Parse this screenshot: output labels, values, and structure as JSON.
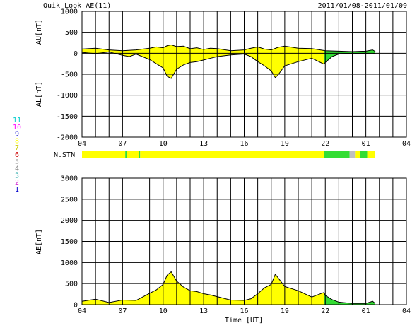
{
  "header": {
    "title": "Quik Look AE(11)",
    "date_range": "2011/01/08-2011/01/09"
  },
  "colors": {
    "yellow": "#ffff00",
    "green": "#33dd33",
    "gray": "#c0c0c0",
    "grid": "#000000",
    "trace": "#000000"
  },
  "legend": {
    "items": [
      {
        "label": "11",
        "color": "#00cccc"
      },
      {
        "label": "10",
        "color": "#ff00ff"
      },
      {
        "label": "9",
        "color": "#0000cc"
      },
      {
        "label": "8",
        "color": "#ffff00"
      },
      {
        "label": "7",
        "color": "#cccc00"
      },
      {
        "label": "6",
        "color": "#cc0000"
      },
      {
        "label": "5",
        "color": "#bbbbbb"
      },
      {
        "label": "4",
        "color": "#888888"
      },
      {
        "label": "3",
        "color": "#009999"
      },
      {
        "label": "2",
        "color": "#cc00cc"
      },
      {
        "label": "1",
        "color": "#0000cc"
      }
    ]
  },
  "chart_data": [
    {
      "type": "area",
      "id": "au_al",
      "ylabel_top": "AU[nT]",
      "ylabel_bottom": "AL[nT]",
      "ylim": [
        -2000,
        1000
      ],
      "yticks": [
        1000,
        500,
        0,
        -500,
        -1000,
        -1500,
        -2000
      ],
      "xlim": [
        4,
        28
      ],
      "xticks": [
        "04",
        "07",
        "10",
        "13",
        "16",
        "19",
        "22",
        "01",
        "04"
      ],
      "grid": true,
      "green_start_hour": 21.9,
      "data_end_hour": 25.7,
      "au": {
        "x": [
          4.0,
          5.0,
          6.0,
          7.0,
          8.0,
          9.0,
          9.5,
          10.0,
          10.3,
          10.6,
          11.0,
          11.5,
          12.0,
          12.5,
          13.0,
          13.5,
          14.0,
          15.0,
          16.0,
          16.5,
          17.0,
          17.5,
          18.0,
          18.5,
          19.0,
          20.0,
          21.0,
          22.0,
          23.0,
          24.0,
          25.0,
          25.5,
          25.7
        ],
        "values": [
          100,
          120,
          80,
          60,
          80,
          120,
          150,
          130,
          180,
          200,
          160,
          170,
          110,
          130,
          90,
          120,
          110,
          60,
          80,
          120,
          150,
          100,
          80,
          140,
          170,
          120,
          110,
          60,
          50,
          40,
          50,
          80,
          40
        ]
      },
      "al": {
        "x": [
          4.0,
          5.0,
          6.0,
          7.0,
          7.5,
          8.0,
          9.0,
          9.5,
          10.0,
          10.3,
          10.6,
          11.0,
          11.5,
          12.0,
          12.5,
          13.0,
          13.5,
          14.0,
          15.0,
          16.0,
          16.5,
          17.0,
          17.5,
          18.0,
          18.3,
          18.5,
          19.0,
          20.0,
          21.0,
          21.9,
          22.0,
          22.5,
          23.0,
          24.0,
          25.0,
          25.5,
          25.7
        ],
        "values": [
          20,
          -10,
          30,
          -50,
          -80,
          -20,
          -150,
          -250,
          -350,
          -550,
          -600,
          -380,
          -280,
          -220,
          -200,
          -160,
          -120,
          -80,
          -40,
          -20,
          -80,
          -200,
          -300,
          -420,
          -580,
          -520,
          -300,
          -200,
          -120,
          -260,
          -220,
          -80,
          -20,
          0,
          -10,
          -20,
          0
        ]
      }
    },
    {
      "type": "bar",
      "id": "station_strip",
      "label": "N.STN",
      "xlim": [
        4,
        28
      ],
      "segments": [
        {
          "start": 4.0,
          "end": 7.2,
          "value": 8
        },
        {
          "start": 7.2,
          "end": 7.3,
          "value": 7
        },
        {
          "start": 7.3,
          "end": 8.2,
          "value": 8
        },
        {
          "start": 8.2,
          "end": 8.3,
          "value": 7
        },
        {
          "start": 8.3,
          "end": 21.9,
          "value": 8
        },
        {
          "start": 21.9,
          "end": 23.8,
          "value": 7
        },
        {
          "start": 23.8,
          "end": 24.2,
          "value": 5
        },
        {
          "start": 24.2,
          "end": 24.6,
          "value": 8
        },
        {
          "start": 24.6,
          "end": 24.8,
          "value": 7
        },
        {
          "start": 24.8,
          "end": 25.1,
          "value": 6
        },
        {
          "start": 25.1,
          "end": 25.7,
          "value": 8
        }
      ]
    },
    {
      "type": "area",
      "id": "ae",
      "ylabel": "AE[nT]",
      "xlabel": "Time [UT]",
      "ylim": [
        0,
        3000
      ],
      "yticks": [
        3000,
        2500,
        2000,
        1500,
        1000,
        500,
        0
      ],
      "xlim": [
        4,
        28
      ],
      "xticks": [
        "04",
        "07",
        "10",
        "13",
        "16",
        "19",
        "22",
        "01",
        "04"
      ],
      "grid": true,
      "green_start_hour": 21.9,
      "data_end_hour": 25.7,
      "x": [
        4.0,
        5.0,
        6.0,
        7.0,
        8.0,
        9.0,
        9.5,
        10.0,
        10.3,
        10.6,
        11.0,
        11.5,
        12.0,
        12.5,
        13.0,
        13.5,
        14.0,
        15.0,
        16.0,
        16.5,
        17.0,
        17.5,
        18.0,
        18.3,
        18.5,
        19.0,
        20.0,
        21.0,
        21.9,
        22.0,
        22.5,
        23.0,
        24.0,
        25.0,
        25.5,
        25.7
      ],
      "values": [
        80,
        130,
        50,
        110,
        100,
        270,
        350,
        480,
        700,
        780,
        560,
        420,
        330,
        310,
        260,
        230,
        190,
        110,
        100,
        140,
        260,
        400,
        480,
        720,
        640,
        430,
        330,
        180,
        290,
        220,
        120,
        60,
        30,
        30,
        80,
        30
      ]
    }
  ]
}
